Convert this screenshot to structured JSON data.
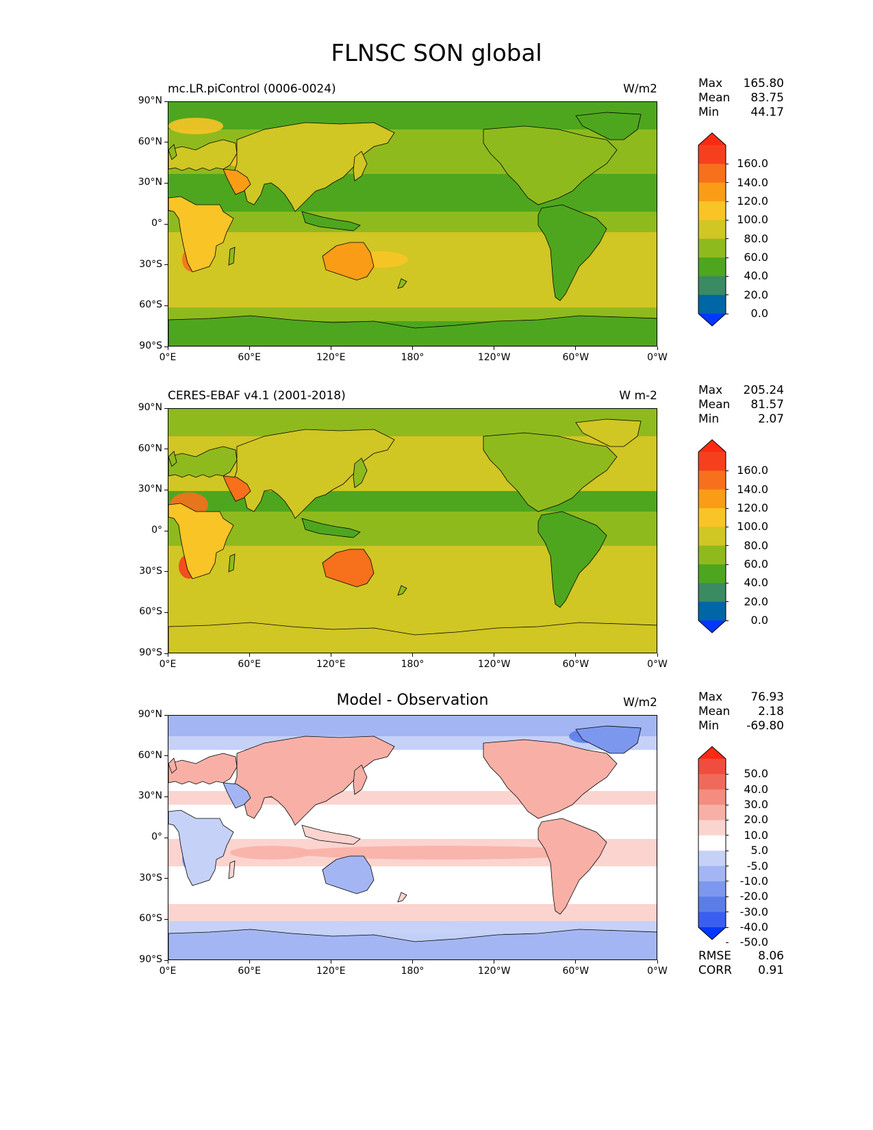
{
  "title": "FLNSC SON global",
  "x_tick_labels": [
    "0°E",
    "60°E",
    "120°E",
    "180°",
    "120°W",
    "60°W",
    "0°W"
  ],
  "y_tick_labels": [
    "90°N",
    "60°N",
    "30°N",
    "0°",
    "30°S",
    "60°S",
    "90°S"
  ],
  "colors": {
    "abs_levels": [
      "#0038ff",
      "#0066a6",
      "#3a8a62",
      "#4ea61e",
      "#8fba1d",
      "#d0c624",
      "#f8c426",
      "#fb9c17",
      "#f7701b",
      "#f6401d",
      "#ff2a14"
    ],
    "diff_levels": [
      "#0038ff",
      "#3b5ef0",
      "#5b7de8",
      "#7c98ee",
      "#a3b6f3",
      "#c5d1f7",
      "#ffffff",
      "#fcd4cf",
      "#f8b0a6",
      "#f48d80",
      "#f06a5c",
      "#f04d3e",
      "#ff2a14"
    ]
  },
  "panels": [
    {
      "title_left": "mc.LR.piControl (0006-0024)",
      "title_right": "W/m2",
      "title_center": "",
      "stats": [
        {
          "label": "Max",
          "value": "165.80"
        },
        {
          "label": "Mean",
          "value": "83.75"
        },
        {
          "label": "Min",
          "value": "44.17"
        }
      ],
      "colorbar_labels": [
        "160.0",
        "140.0",
        "120.0",
        "100.0",
        "80.0",
        "60.0",
        "40.0",
        "20.0",
        "0.0"
      ]
    },
    {
      "title_left": "CERES-EBAF v4.1 (2001-2018)",
      "title_right": "W m-2",
      "title_center": "",
      "stats": [
        {
          "label": "Max",
          "value": "205.24"
        },
        {
          "label": "Mean",
          "value": "81.57"
        },
        {
          "label": "Min",
          "value": "2.07"
        }
      ],
      "colorbar_labels": [
        "160.0",
        "140.0",
        "120.0",
        "100.0",
        "80.0",
        "60.0",
        "40.0",
        "20.0",
        "0.0"
      ]
    },
    {
      "title_left": "",
      "title_right": "W/m2",
      "title_center": "Model - Observation",
      "stats": [
        {
          "label": "Max",
          "value": "76.93"
        },
        {
          "label": "Mean",
          "value": "2.18"
        },
        {
          "label": "Min",
          "value": "-69.80"
        }
      ],
      "colorbar_labels": [
        "50.0",
        "40.0",
        "30.0",
        "20.0",
        "10.0",
        "5.0",
        "-5.0",
        "-10.0",
        "-20.0",
        "-30.0",
        "-40.0",
        "-50.0"
      ],
      "extra_stats": [
        {
          "label": "RMSE",
          "value": "8.06"
        },
        {
          "label": "CORR",
          "value": "0.91"
        }
      ]
    }
  ]
}
